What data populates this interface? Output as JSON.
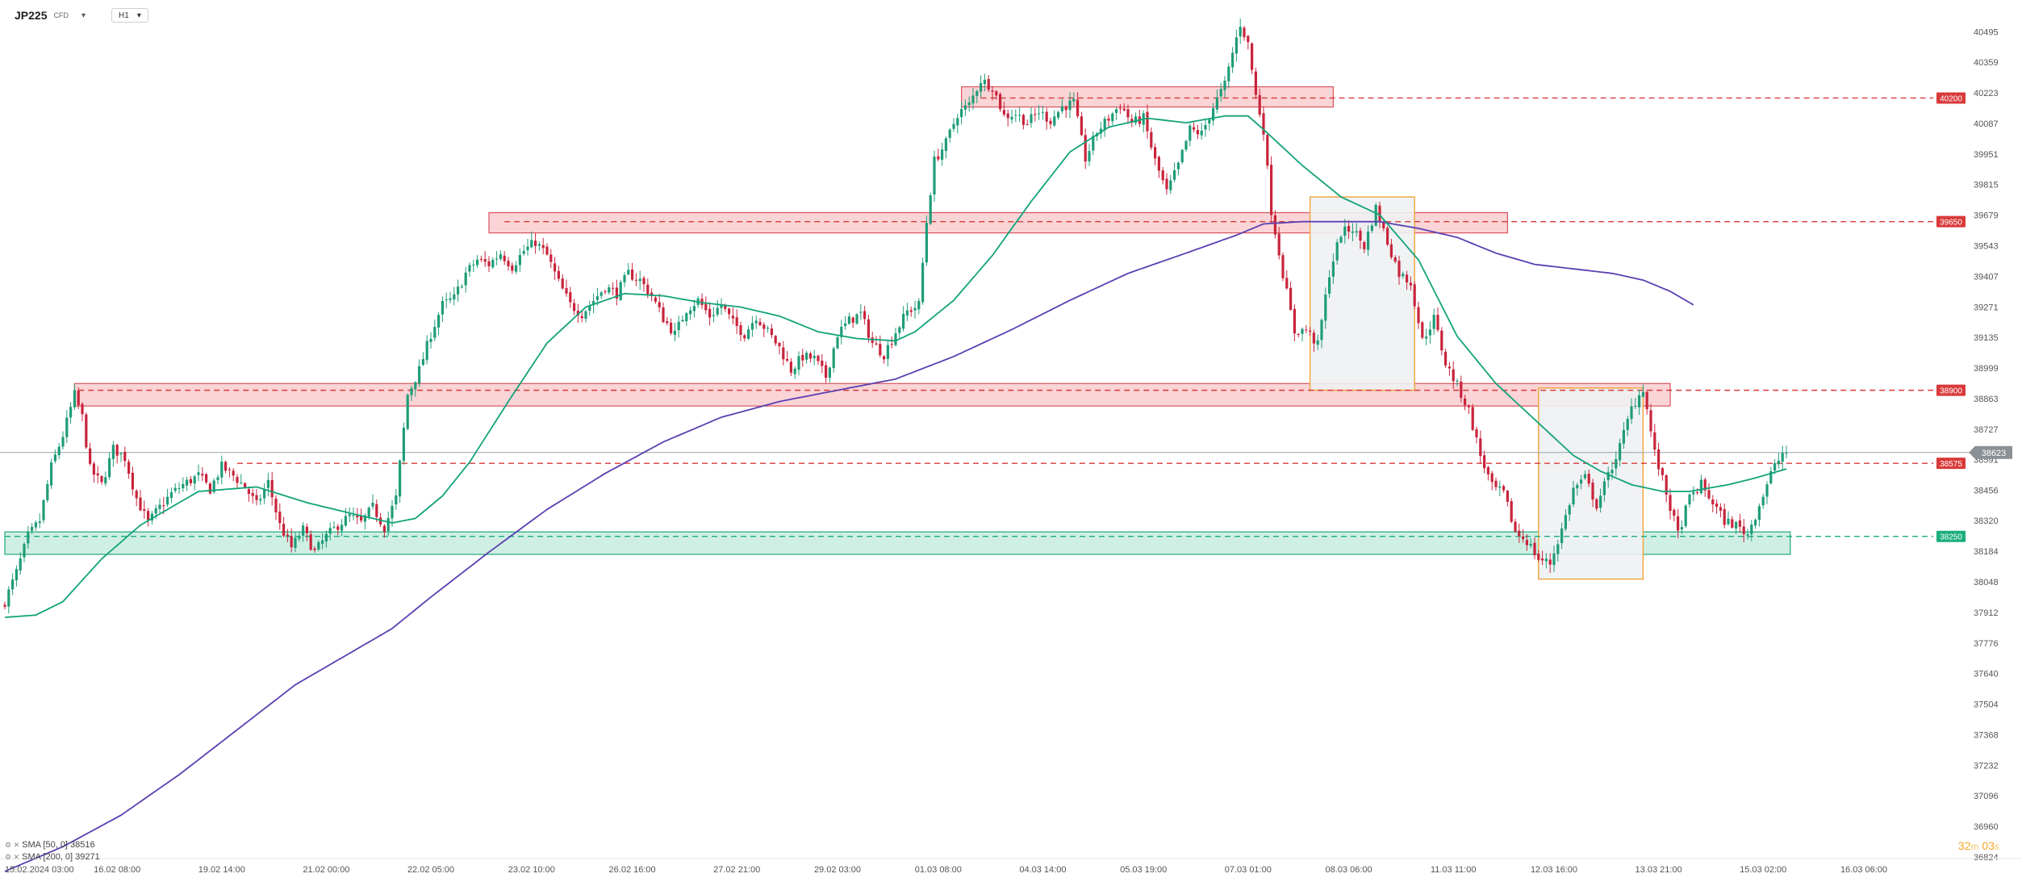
{
  "header": {
    "symbol": "JP225",
    "symbol_sub": "CFD",
    "timeframe": "H1"
  },
  "legend": {
    "sma50": "SMA [50, 0] 38516",
    "sma200": "SMA [200, 0] 39271"
  },
  "timer": {
    "minutes": "32",
    "m_unit": "m",
    "seconds": "03",
    "s_unit": "s"
  },
  "colors": {
    "bull": "#1f9c78",
    "bear": "#c8243c",
    "sma50": "#12a37a",
    "sma200": "#5b3fb2",
    "resistance_fill": "#f9c9cc",
    "resistance_border": "#d9545c",
    "support_fill": "#bfeadb",
    "support_border": "#21a77b",
    "box_fill": "#eef1f2",
    "box_border": "#f1a33c",
    "level_red": "#d93a3a",
    "level_green": "#1bae7d",
    "price_tag": "#8a9094"
  },
  "chart_data": {
    "type": "candlestick",
    "yaxis": {
      "ylim": [
        36824,
        40600
      ],
      "ticks": [
        40495,
        40359,
        40223,
        40087,
        39951,
        39815,
        39679,
        39543,
        39407,
        39271,
        39135,
        38999,
        38863,
        38727,
        38591,
        38456,
        38320,
        38184,
        38048,
        37912,
        37776,
        37640,
        37504,
        37368,
        37232,
        37096,
        36960,
        36824
      ]
    },
    "xaxis": {
      "start": "15.02.2024 03:00",
      "bar_hours": 1,
      "ticks": [
        {
          "label": "15.02.2024  03:00",
          "bar": 0
        },
        {
          "label": "16.02  08:00",
          "bar": 29
        },
        {
          "label": "19.02  14:00",
          "bar": 56
        },
        {
          "label": "21.02  00:00",
          "bar": 83
        },
        {
          "label": "22.02  05:00",
          "bar": 110
        },
        {
          "label": "23.02  10:00",
          "bar": 136
        },
        {
          "label": "26.02  16:00",
          "bar": 162
        },
        {
          "label": "27.02  21:00",
          "bar": 189
        },
        {
          "label": "29.02  03:00",
          "bar": 215
        },
        {
          "label": "01.03  08:00",
          "bar": 241
        },
        {
          "label": "04.03  14:00",
          "bar": 268
        },
        {
          "label": "05.03  19:00",
          "bar": 294
        },
        {
          "label": "07.03  01:00",
          "bar": 321
        },
        {
          "label": "08.03  06:00",
          "bar": 347
        },
        {
          "label": "11.03  11:00",
          "bar": 374
        },
        {
          "label": "12.03  16:00",
          "bar": 400
        },
        {
          "label": "13.03  21:00",
          "bar": 427
        },
        {
          "label": "15.03  02:00",
          "bar": 454
        },
        {
          "label": "16.03  06:00",
          "bar": 480
        }
      ]
    },
    "anchors": [
      [
        0,
        37960
      ],
      [
        3,
        38090
      ],
      [
        6,
        38250
      ],
      [
        9,
        38320
      ],
      [
        12,
        38560
      ],
      [
        15,
        38700
      ],
      [
        18,
        38880
      ],
      [
        20,
        38780
      ],
      [
        22,
        38550
      ],
      [
        25,
        38480
      ],
      [
        28,
        38640
      ],
      [
        31,
        38600
      ],
      [
        34,
        38420
      ],
      [
        37,
        38310
      ],
      [
        40,
        38380
      ],
      [
        43,
        38440
      ],
      [
        46,
        38480
      ],
      [
        50,
        38520
      ],
      [
        53,
        38460
      ],
      [
        56,
        38560
      ],
      [
        59,
        38520
      ],
      [
        62,
        38470
      ],
      [
        65,
        38390
      ],
      [
        68,
        38490
      ],
      [
        71,
        38300
      ],
      [
        74,
        38200
      ],
      [
        77,
        38280
      ],
      [
        80,
        38180
      ],
      [
        83,
        38250
      ],
      [
        86,
        38300
      ],
      [
        89,
        38340
      ],
      [
        92,
        38310
      ],
      [
        95,
        38380
      ],
      [
        98,
        38290
      ],
      [
        101,
        38420
      ],
      [
        104,
        38880
      ],
      [
        107,
        38990
      ],
      [
        110,
        39150
      ],
      [
        113,
        39280
      ],
      [
        116,
        39310
      ],
      [
        119,
        39420
      ],
      [
        122,
        39480
      ],
      [
        125,
        39460
      ],
      [
        128,
        39510
      ],
      [
        131,
        39450
      ],
      [
        134,
        39520
      ],
      [
        137,
        39560
      ],
      [
        140,
        39500
      ],
      [
        143,
        39380
      ],
      [
        146,
        39280
      ],
      [
        149,
        39240
      ],
      [
        152,
        39300
      ],
      [
        155,
        39360
      ],
      [
        158,
        39330
      ],
      [
        161,
        39420
      ],
      [
        164,
        39390
      ],
      [
        167,
        39320
      ],
      [
        170,
        39220
      ],
      [
        173,
        39150
      ],
      [
        176,
        39260
      ],
      [
        179,
        39300
      ],
      [
        182,
        39230
      ],
      [
        185,
        39280
      ],
      [
        188,
        39200
      ],
      [
        191,
        39150
      ],
      [
        194,
        39230
      ],
      [
        197,
        39160
      ],
      [
        200,
        39090
      ],
      [
        203,
        38990
      ],
      [
        206,
        39050
      ],
      [
        209,
        39040
      ],
      [
        212,
        38960
      ],
      [
        215,
        39150
      ],
      [
        218,
        39210
      ],
      [
        221,
        39240
      ],
      [
        224,
        39110
      ],
      [
        227,
        39060
      ],
      [
        230,
        39160
      ],
      [
        233,
        39250
      ],
      [
        236,
        39280
      ],
      [
        238,
        39650
      ],
      [
        240,
        39920
      ],
      [
        243,
        40000
      ],
      [
        246,
        40130
      ],
      [
        249,
        40170
      ],
      [
        252,
        40280
      ],
      [
        255,
        40250
      ],
      [
        258,
        40120
      ],
      [
        261,
        40130
      ],
      [
        264,
        40090
      ],
      [
        267,
        40140
      ],
      [
        270,
        40100
      ],
      [
        273,
        40160
      ],
      [
        276,
        40180
      ],
      [
        279,
        39930
      ],
      [
        282,
        40050
      ],
      [
        285,
        40110
      ],
      [
        288,
        40170
      ],
      [
        291,
        40090
      ],
      [
        294,
        40110
      ],
      [
        297,
        39920
      ],
      [
        300,
        39780
      ],
      [
        303,
        39900
      ],
      [
        306,
        40060
      ],
      [
        309,
        40040
      ],
      [
        312,
        40160
      ],
      [
        315,
        40260
      ],
      [
        317,
        40400
      ],
      [
        319,
        40530
      ],
      [
        321,
        40440
      ],
      [
        323,
        40210
      ],
      [
        325,
        40060
      ],
      [
        327,
        39700
      ],
      [
        330,
        39420
      ],
      [
        333,
        39160
      ],
      [
        336,
        39170
      ],
      [
        339,
        39100
      ],
      [
        342,
        39420
      ],
      [
        345,
        39600
      ],
      [
        348,
        39620
      ],
      [
        351,
        39540
      ],
      [
        354,
        39710
      ],
      [
        357,
        39560
      ],
      [
        360,
        39420
      ],
      [
        363,
        39380
      ],
      [
        366,
        39120
      ],
      [
        369,
        39220
      ],
      [
        372,
        39020
      ],
      [
        375,
        38920
      ],
      [
        378,
        38810
      ],
      [
        381,
        38610
      ],
      [
        384,
        38470
      ],
      [
        387,
        38440
      ],
      [
        390,
        38270
      ],
      [
        393,
        38230
      ],
      [
        396,
        38150
      ],
      [
        399,
        38130
      ],
      [
        402,
        38280
      ],
      [
        405,
        38460
      ],
      [
        408,
        38510
      ],
      [
        411,
        38390
      ],
      [
        414,
        38520
      ],
      [
        417,
        38650
      ],
      [
        420,
        38820
      ],
      [
        423,
        38910
      ],
      [
        426,
        38620
      ],
      [
        429,
        38440
      ],
      [
        432,
        38260
      ],
      [
        435,
        38420
      ],
      [
        438,
        38480
      ],
      [
        441,
        38400
      ],
      [
        444,
        38320
      ],
      [
        447,
        38300
      ],
      [
        450,
        38260
      ],
      [
        453,
        38390
      ],
      [
        456,
        38530
      ],
      [
        459,
        38620
      ],
      [
        460,
        38623
      ]
    ],
    "sma50": [
      [
        0,
        37890
      ],
      [
        8,
        37900
      ],
      [
        15,
        37960
      ],
      [
        25,
        38150
      ],
      [
        35,
        38300
      ],
      [
        50,
        38450
      ],
      [
        65,
        38470
      ],
      [
        78,
        38400
      ],
      [
        90,
        38350
      ],
      [
        100,
        38310
      ],
      [
        106,
        38330
      ],
      [
        113,
        38430
      ],
      [
        120,
        38580
      ],
      [
        130,
        38850
      ],
      [
        140,
        39110
      ],
      [
        150,
        39270
      ],
      [
        160,
        39330
      ],
      [
        170,
        39320
      ],
      [
        180,
        39290
      ],
      [
        190,
        39270
      ],
      [
        200,
        39230
      ],
      [
        210,
        39160
      ],
      [
        220,
        39130
      ],
      [
        230,
        39120
      ],
      [
        235,
        39160
      ],
      [
        245,
        39300
      ],
      [
        255,
        39500
      ],
      [
        265,
        39740
      ],
      [
        275,
        39960
      ],
      [
        285,
        40070
      ],
      [
        295,
        40110
      ],
      [
        305,
        40090
      ],
      [
        315,
        40120
      ],
      [
        321,
        40120
      ],
      [
        325,
        40060
      ],
      [
        335,
        39900
      ],
      [
        345,
        39760
      ],
      [
        355,
        39680
      ],
      [
        365,
        39480
      ],
      [
        375,
        39140
      ],
      [
        385,
        38930
      ],
      [
        395,
        38770
      ],
      [
        405,
        38610
      ],
      [
        412,
        38540
      ],
      [
        420,
        38480
      ],
      [
        428,
        38450
      ],
      [
        435,
        38450
      ],
      [
        445,
        38480
      ],
      [
        452,
        38510
      ],
      [
        460,
        38550
      ]
    ],
    "sma200": [
      [
        0,
        36760
      ],
      [
        15,
        36870
      ],
      [
        30,
        37010
      ],
      [
        45,
        37190
      ],
      [
        60,
        37390
      ],
      [
        75,
        37590
      ],
      [
        90,
        37740
      ],
      [
        100,
        37840
      ],
      [
        110,
        37980
      ],
      [
        125,
        38180
      ],
      [
        140,
        38370
      ],
      [
        155,
        38530
      ],
      [
        170,
        38670
      ],
      [
        185,
        38780
      ],
      [
        200,
        38850
      ],
      [
        215,
        38900
      ],
      [
        230,
        38950
      ],
      [
        245,
        39050
      ],
      [
        260,
        39170
      ],
      [
        275,
        39300
      ],
      [
        290,
        39420
      ],
      [
        305,
        39510
      ],
      [
        318,
        39590
      ],
      [
        325,
        39640
      ],
      [
        335,
        39650
      ],
      [
        345,
        39650
      ],
      [
        355,
        39650
      ],
      [
        365,
        39620
      ],
      [
        375,
        39580
      ],
      [
        385,
        39510
      ],
      [
        395,
        39460
      ],
      [
        405,
        39440
      ],
      [
        415,
        39420
      ],
      [
        423,
        39390
      ],
      [
        430,
        39340
      ],
      [
        436,
        39280
      ]
    ],
    "zones": [
      {
        "kind": "resistance",
        "x0_bar": 247,
        "x1_bar": 343,
        "y_low": 40160,
        "y_high": 40250
      },
      {
        "kind": "resistance",
        "x0_bar": 125,
        "x1_bar": 388,
        "y_low": 39600,
        "y_high": 39690
      },
      {
        "kind": "resistance",
        "x0_bar": 18,
        "x1_bar": 430,
        "y_low": 38830,
        "y_high": 38930
      },
      {
        "kind": "support",
        "x0_bar": 0,
        "x1_bar": 461,
        "y_low": 38170,
        "y_high": 38270
      }
    ],
    "boxes": [
      {
        "x0_bar": 337,
        "x1_bar": 364,
        "y_low": 38900,
        "y_high": 39760
      },
      {
        "x0_bar": 396,
        "x1_bar": 423,
        "y_low": 38060,
        "y_high": 38910
      }
    ],
    "levels": [
      {
        "value": 40200,
        "label": "40200",
        "color": "red",
        "x0_bar": 252
      },
      {
        "value": 39650,
        "label": "39650",
        "color": "red",
        "x0_bar": 129
      },
      {
        "value": 38900,
        "label": "38900",
        "color": "red",
        "x0_bar": 19
      },
      {
        "value": 38575,
        "label": "38575",
        "color": "red",
        "x0_bar": 60
      },
      {
        "value": 38250,
        "label": "38250",
        "color": "green",
        "x0_bar": 0
      }
    ],
    "current_price": {
      "value": 38623,
      "label": "38623"
    }
  }
}
